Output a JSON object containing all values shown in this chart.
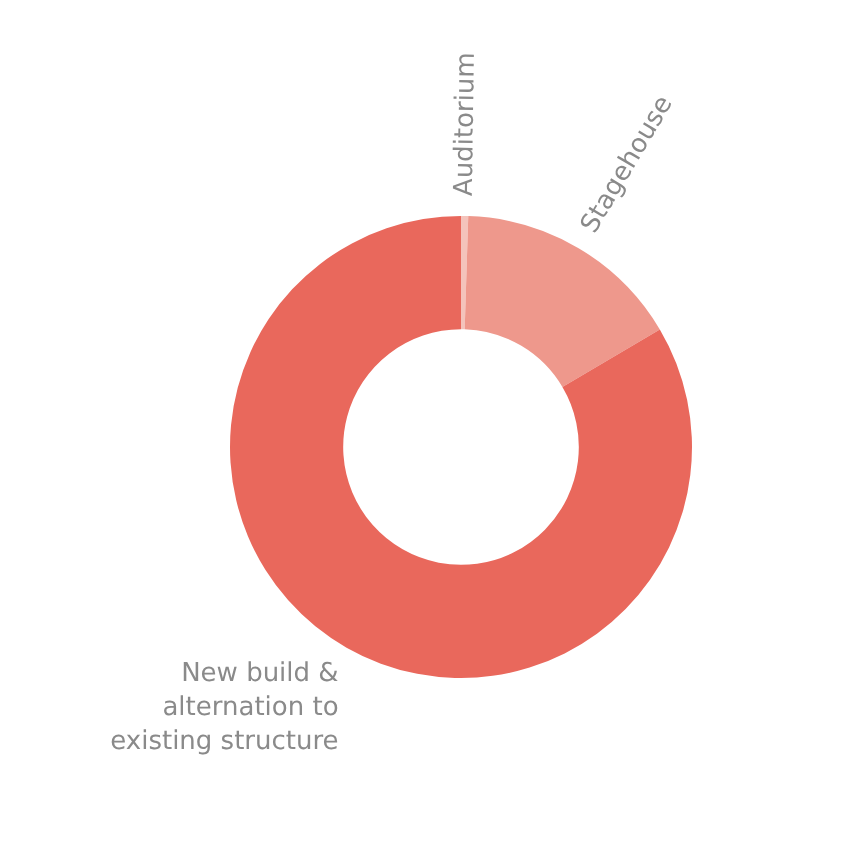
{
  "chart_data": {
    "type": "donut",
    "categories": [
      "Auditorium",
      "Stagehouse",
      "New build & alternation to existing structure"
    ],
    "values": [
      0.5,
      16,
      83.5
    ],
    "colors": [
      "#f4c3bb",
      "#ee988c",
      "#e9685c"
    ]
  }
}
